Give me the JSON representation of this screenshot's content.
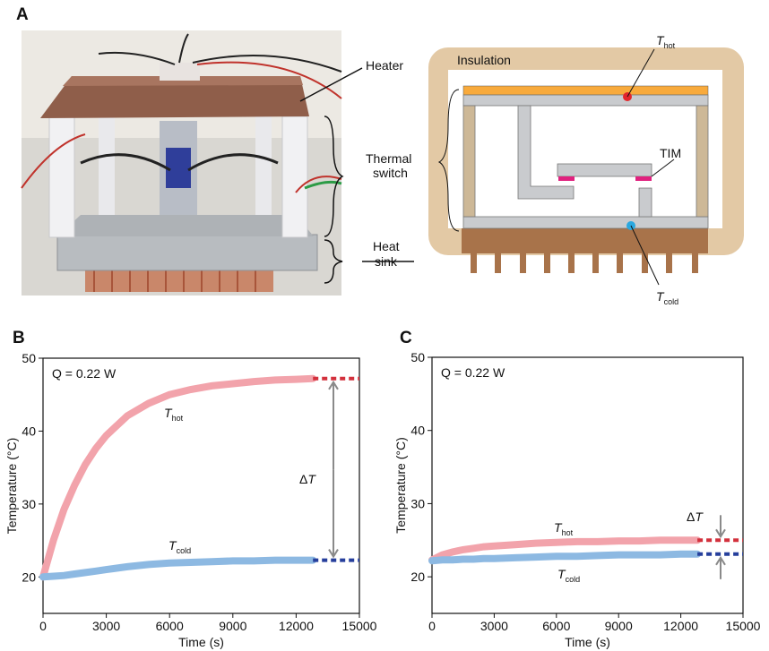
{
  "panel_a": {
    "letter": "A",
    "photo_labels": {
      "heater": "Heater",
      "switch": [
        "Thermal",
        "switch"
      ],
      "sink": [
        "Heat",
        "sink"
      ]
    },
    "diagram_labels": {
      "insulation": "Insulation",
      "tim": "TIM",
      "t_hot": {
        "main": "T",
        "sub": "hot"
      },
      "t_cold": {
        "main": "T",
        "sub": "cold"
      }
    }
  },
  "chart_data": [
    {
      "type": "line",
      "panel": "B",
      "annotation": "Q = 0.22 W",
      "delta_symbol": "Δ",
      "delta_var": "T",
      "x_label": "Time (s)",
      "y_label": "Temperature (°C)",
      "xlim": [
        0,
        15000
      ],
      "xticks": [
        0,
        3000,
        6000,
        9000,
        12000,
        15000
      ],
      "ylim": [
        15,
        50
      ],
      "yticks": [
        20,
        30,
        40,
        50
      ],
      "series": [
        {
          "name": "T",
          "subscript": "hot",
          "color": "#f2a3ab",
          "x": [
            0,
            500,
            1000,
            1500,
            2000,
            2500,
            3000,
            4000,
            5000,
            6000,
            7000,
            8000,
            9000,
            10000,
            11000,
            12000,
            12800
          ],
          "values": [
            20,
            25.1,
            29.3,
            32.6,
            35.4,
            37.6,
            39.4,
            42.1,
            43.8,
            45.0,
            45.7,
            46.2,
            46.5,
            46.8,
            47.0,
            47.1,
            47.2
          ]
        },
        {
          "name": "T",
          "subscript": "cold",
          "color": "#8db9e2",
          "x": [
            0,
            500,
            1000,
            1500,
            2000,
            2500,
            3000,
            4000,
            5000,
            6000,
            7000,
            8000,
            9000,
            10000,
            11000,
            12000,
            12800
          ],
          "values": [
            20,
            20.1,
            20.2,
            20.4,
            20.6,
            20.8,
            21.0,
            21.4,
            21.7,
            21.9,
            22.0,
            22.1,
            22.2,
            22.2,
            22.3,
            22.3,
            22.3
          ]
        }
      ],
      "steady": [
        {
          "color": "#d3303c",
          "x": [
            12800,
            15000
          ],
          "values": [
            47.2,
            47.2
          ]
        },
        {
          "color": "#263f9c",
          "x": [
            12800,
            15000
          ],
          "values": [
            22.3,
            22.3
          ]
        }
      ]
    },
    {
      "type": "line",
      "panel": "C",
      "annotation": "Q = 0.22 W",
      "delta_symbol": "Δ",
      "delta_var": "T",
      "x_label": "Time (s)",
      "y_label": "Temperature (°C)",
      "xlim": [
        0,
        15000
      ],
      "xticks": [
        0,
        3000,
        6000,
        9000,
        12000,
        15000
      ],
      "ylim": [
        15,
        50
      ],
      "yticks": [
        20,
        30,
        40,
        50
      ],
      "series": [
        {
          "name": "T",
          "subscript": "hot",
          "color": "#f2a3ab",
          "x": [
            0,
            500,
            1000,
            1500,
            2000,
            2500,
            3000,
            4000,
            5000,
            6000,
            7000,
            8000,
            9000,
            10000,
            11000,
            12000,
            12800
          ],
          "values": [
            22.3,
            23.0,
            23.4,
            23.7,
            23.9,
            24.1,
            24.2,
            24.4,
            24.6,
            24.7,
            24.8,
            24.8,
            24.9,
            24.9,
            25.0,
            25.0,
            25.0
          ]
        },
        {
          "name": "T",
          "subscript": "cold",
          "color": "#8db9e2",
          "x": [
            0,
            500,
            1000,
            1500,
            2000,
            2500,
            3000,
            4000,
            5000,
            6000,
            7000,
            8000,
            9000,
            10000,
            11000,
            12000,
            12800
          ],
          "values": [
            22.2,
            22.3,
            22.3,
            22.4,
            22.4,
            22.5,
            22.5,
            22.6,
            22.7,
            22.8,
            22.8,
            22.9,
            23.0,
            23.0,
            23.0,
            23.1,
            23.1
          ]
        }
      ],
      "steady": [
        {
          "color": "#d3303c",
          "x": [
            12800,
            15000
          ],
          "values": [
            25.0,
            25.0
          ]
        },
        {
          "color": "#263f9c",
          "x": [
            12800,
            15000
          ],
          "values": [
            23.1,
            23.1
          ]
        }
      ]
    }
  ]
}
